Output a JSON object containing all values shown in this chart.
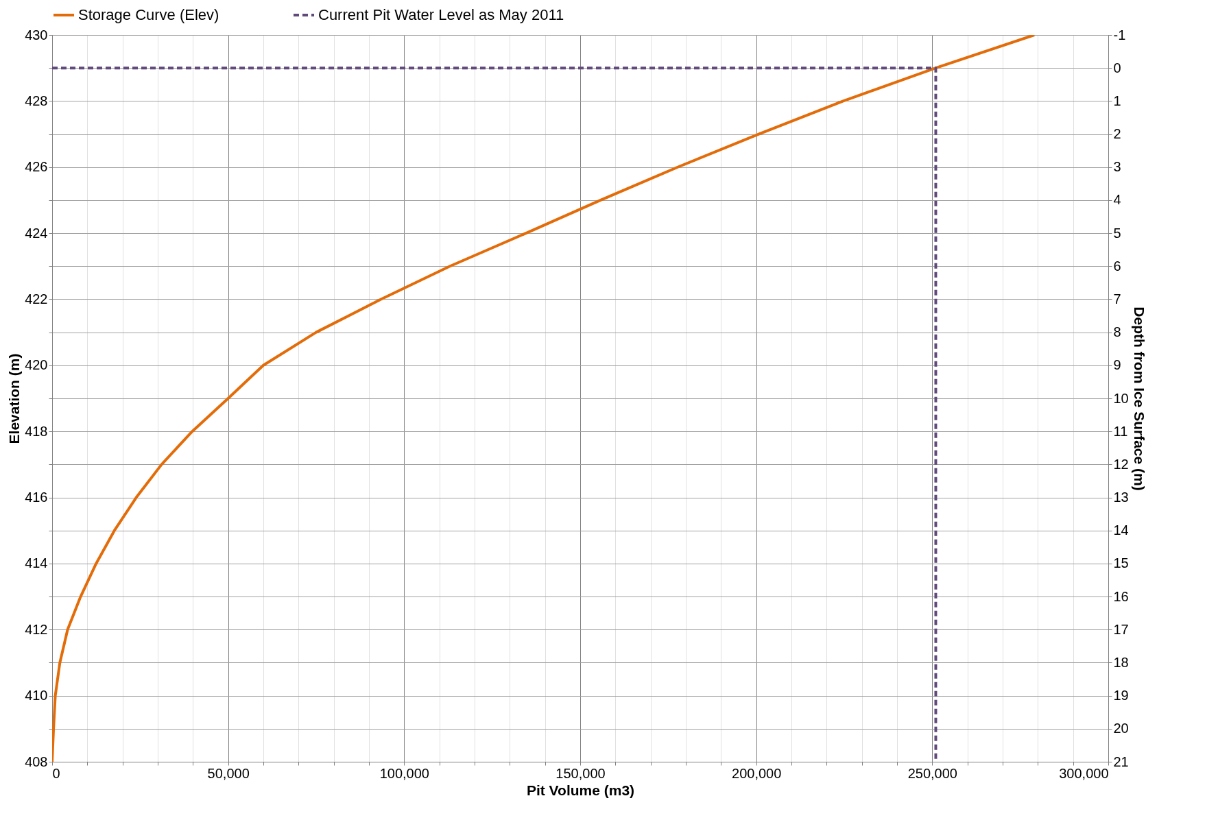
{
  "chart_data": {
    "type": "line",
    "xlabel": "Pit Volume (m3)",
    "ylabel": "Elevation (m)",
    "y2label": "Depth from Ice Surface (m)",
    "xlim": [
      0,
      300000
    ],
    "xticks": [
      0,
      {
        "value": 10000,
        "label": null
      },
      {
        "value": 20000,
        "label": null
      },
      {
        "value": 30000,
        "label": null
      },
      {
        "value": 40000,
        "label": null
      },
      {
        "value": 50000,
        "label": "50,000"
      },
      {
        "value": 60000,
        "label": null
      },
      {
        "value": 70000,
        "label": null
      },
      {
        "value": 80000,
        "label": null
      },
      {
        "value": 90000,
        "label": null
      },
      {
        "value": 100000,
        "label": "100,000"
      },
      {
        "value": 110000,
        "label": null
      },
      {
        "value": 120000,
        "label": null
      },
      {
        "value": 130000,
        "label": null
      },
      {
        "value": 140000,
        "label": null
      },
      {
        "value": 150000,
        "label": "150,000"
      },
      {
        "value": 160000,
        "label": null
      },
      {
        "value": 170000,
        "label": null
      },
      {
        "value": 180000,
        "label": null
      },
      {
        "value": 190000,
        "label": null
      },
      {
        "value": 200000,
        "label": "200,000"
      },
      {
        "value": 210000,
        "label": null
      },
      {
        "value": 220000,
        "label": null
      },
      {
        "value": 230000,
        "label": null
      },
      {
        "value": 240000,
        "label": null
      },
      {
        "value": 250000,
        "label": "250,000"
      },
      {
        "value": 260000,
        "label": null
      },
      {
        "value": 270000,
        "label": null
      },
      {
        "value": 280000,
        "label": null
      },
      {
        "value": 290000,
        "label": null
      },
      {
        "value": 300000,
        "label": "300,000"
      }
    ],
    "ylim": [
      408,
      430
    ],
    "yticks": [
      408,
      {
        "value": 409,
        "label": null
      },
      410,
      {
        "value": 411,
        "label": null
      },
      412,
      {
        "value": 413,
        "label": null
      },
      414,
      {
        "value": 415,
        "label": null
      },
      416,
      {
        "value": 417,
        "label": null
      },
      418,
      {
        "value": 419,
        "label": null
      },
      420,
      {
        "value": 421,
        "label": null
      },
      422,
      {
        "value": 423,
        "label": null
      },
      424,
      {
        "value": 425,
        "label": null
      },
      426,
      {
        "value": 427,
        "label": null
      },
      428,
      {
        "value": 429,
        "label": null
      },
      430
    ],
    "y2lim": [
      21,
      -1
    ],
    "y2ticks": [
      -1,
      0,
      1,
      2,
      3,
      4,
      5,
      6,
      7,
      8,
      9,
      10,
      11,
      12,
      13,
      14,
      15,
      16,
      17,
      18,
      19,
      20,
      21
    ],
    "grid": true,
    "legend": "top",
    "series": [
      {
        "name": "Storage Curve (Elev)",
        "color": "#e36c09",
        "line_style": "solid",
        "x": [
          0,
          400,
          900,
          2200,
          4400,
          8100,
          12500,
          17700,
          23900,
          31100,
          39800,
          50000,
          60000,
          75000,
          93400,
          113000,
          134600,
          155800,
          177700,
          200700,
          224700,
          251000,
          279000
        ],
        "values": [
          408,
          409,
          410,
          411,
          412,
          413,
          414,
          415,
          416,
          417,
          418,
          419,
          420,
          421,
          422,
          423,
          424,
          425,
          426,
          427,
          428,
          429,
          430
        ]
      },
      {
        "name": "Current Pit Water Level as May 2011",
        "color": "#604a7b",
        "line_style": "dashed",
        "x": [
          0,
          251000,
          251000
        ],
        "values": [
          429,
          429,
          408
        ]
      }
    ]
  }
}
